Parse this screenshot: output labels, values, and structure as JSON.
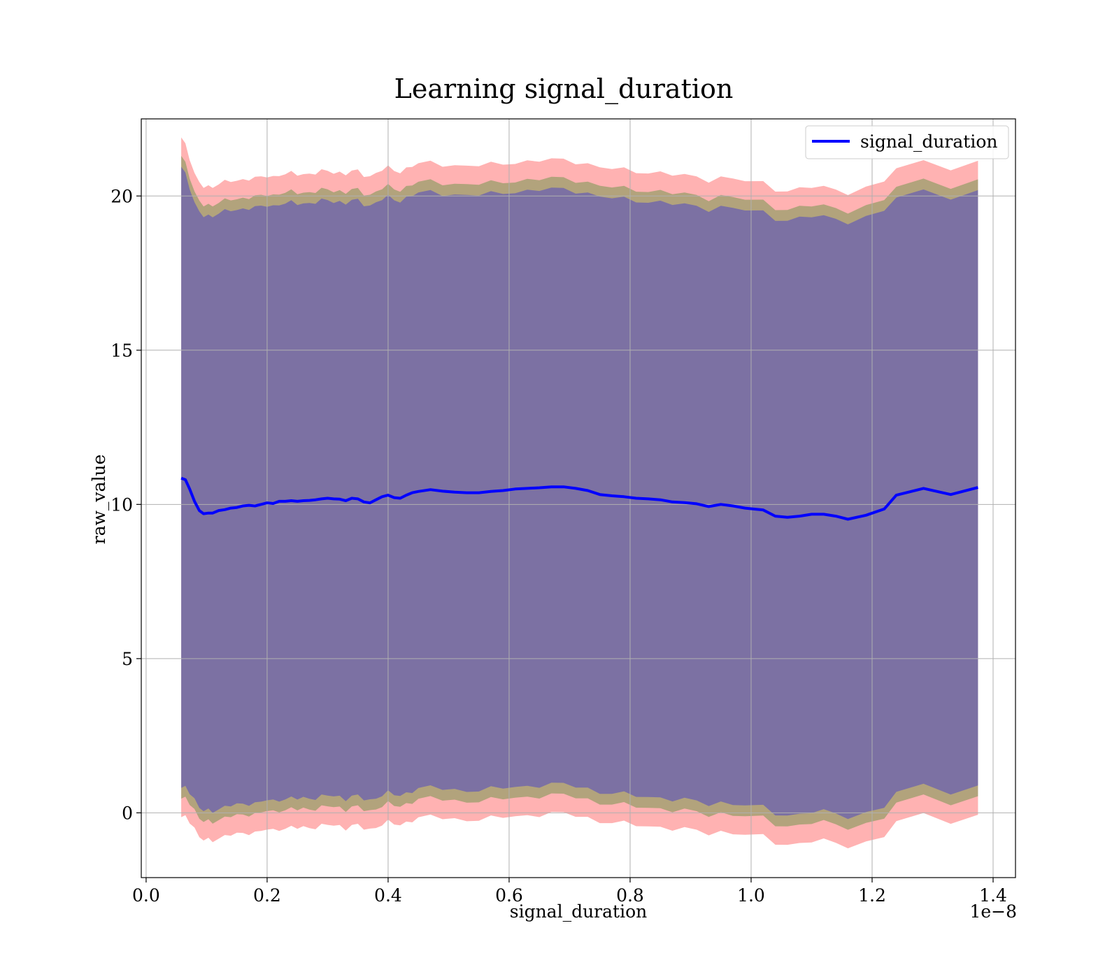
{
  "chart_data": {
    "type": "line",
    "title": "Learning signal_duration",
    "xlabel": "signal_duration",
    "ylabel": "raw_value",
    "x_offset_label": "1e−8",
    "xlim": [
      -0.008,
      1.437
    ],
    "ylim": [
      -2.1,
      22.5
    ],
    "x_ticks": [
      0.0,
      0.2,
      0.4,
      0.6,
      0.8,
      1.0,
      1.2,
      1.4
    ],
    "x_tick_labels": [
      "0.0",
      "0.2",
      "0.4",
      "0.6",
      "0.8",
      "1.0",
      "1.2",
      "1.4"
    ],
    "y_ticks": [
      0,
      5,
      10,
      15,
      20
    ],
    "y_tick_labels": [
      "0",
      "5",
      "10",
      "15",
      "20"
    ],
    "grid": true,
    "legend_position": "top-right",
    "legend": [
      "signal_duration"
    ],
    "colors": {
      "line": "#0000ff",
      "band_outer": "#ff0000",
      "band_middle": "#008000",
      "band_inner": "#0000ff",
      "grid": "#b0b0b0"
    },
    "x": [
      0.058,
      0.065,
      0.072,
      0.08,
      0.088,
      0.095,
      0.103,
      0.11,
      0.12,
      0.13,
      0.14,
      0.15,
      0.16,
      0.17,
      0.18,
      0.19,
      0.2,
      0.21,
      0.22,
      0.23,
      0.24,
      0.25,
      0.26,
      0.27,
      0.28,
      0.29,
      0.3,
      0.31,
      0.32,
      0.33,
      0.34,
      0.35,
      0.36,
      0.37,
      0.38,
      0.39,
      0.4,
      0.41,
      0.42,
      0.43,
      0.44,
      0.45,
      0.47,
      0.49,
      0.51,
      0.53,
      0.55,
      0.57,
      0.59,
      0.61,
      0.63,
      0.65,
      0.67,
      0.69,
      0.71,
      0.73,
      0.75,
      0.77,
      0.79,
      0.81,
      0.83,
      0.85,
      0.87,
      0.89,
      0.91,
      0.93,
      0.95,
      0.97,
      0.99,
      1.02,
      1.04,
      1.06,
      1.08,
      1.1,
      1.12,
      1.14,
      1.16,
      1.19,
      1.22,
      1.24,
      1.285,
      1.33,
      1.375
    ],
    "series": [
      {
        "name": "signal_duration",
        "values": [
          10.85,
          10.8,
          10.5,
          10.1,
          9.8,
          9.7,
          9.72,
          9.72,
          9.8,
          9.83,
          9.88,
          9.9,
          9.95,
          9.97,
          9.95,
          10.0,
          10.05,
          10.03,
          10.1,
          10.1,
          10.12,
          10.1,
          10.12,
          10.13,
          10.15,
          10.18,
          10.2,
          10.18,
          10.17,
          10.12,
          10.2,
          10.18,
          10.08,
          10.05,
          10.15,
          10.25,
          10.3,
          10.22,
          10.2,
          10.3,
          10.38,
          10.42,
          10.48,
          10.43,
          10.4,
          10.38,
          10.38,
          10.42,
          10.45,
          10.5,
          10.52,
          10.54,
          10.57,
          10.57,
          10.52,
          10.45,
          10.32,
          10.28,
          10.25,
          10.2,
          10.18,
          10.15,
          10.08,
          10.06,
          10.02,
          9.93,
          10.0,
          9.95,
          9.88,
          9.82,
          9.62,
          9.58,
          9.62,
          9.68,
          9.68,
          9.62,
          9.52,
          9.65,
          9.85,
          10.3,
          10.52,
          10.32,
          10.55
        ]
      }
    ]
  }
}
